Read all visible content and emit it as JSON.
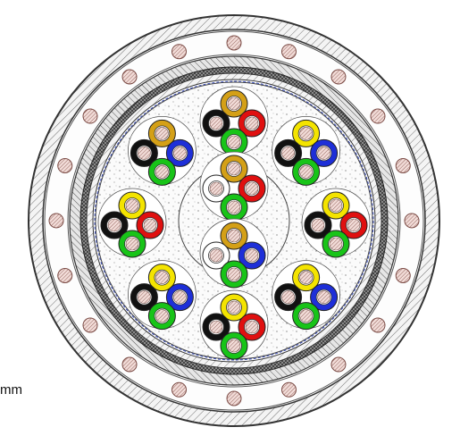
{
  "figure": {
    "unit_text": "mm",
    "colors": {
      "outline": "#333333",
      "jacket_fill": "#f4f4f4",
      "armor_fill": "#bdbdbd",
      "strength_member_fill": "#e8c8c4",
      "filler_fill": "#fafafa",
      "core_hatch": "#c9a39c",
      "binder_tape": "#3a4db5",
      "conductor_yellow": "#f4e400",
      "conductor_red": "#e01010",
      "conductor_blue": "#1e2fd8",
      "conductor_green": "#18c418",
      "conductor_black": "#111111",
      "conductor_gold": "#d4a017",
      "conductor_white": "#ffffff"
    },
    "outer_quads": [
      {
        "name": "top",
        "conductors": [
          "gold",
          "black",
          "red",
          "green"
        ]
      },
      {
        "name": "upper-right",
        "conductors": [
          "yellow",
          "black",
          "blue",
          "green"
        ]
      },
      {
        "name": "right",
        "conductors": [
          "yellow",
          "black",
          "red",
          "green"
        ]
      },
      {
        "name": "lower-right",
        "conductors": [
          "yellow",
          "black",
          "blue",
          "green"
        ]
      },
      {
        "name": "bottom",
        "conductors": [
          "yellow",
          "black",
          "red",
          "green"
        ]
      },
      {
        "name": "lower-left",
        "conductors": [
          "yellow",
          "black",
          "blue",
          "green"
        ]
      },
      {
        "name": "left",
        "conductors": [
          "yellow",
          "black",
          "red",
          "green"
        ]
      },
      {
        "name": "upper-left",
        "conductors": [
          "gold",
          "black",
          "blue",
          "green"
        ]
      }
    ],
    "central_quads": [
      {
        "name": "center-upper",
        "conductors": [
          "gold",
          "white",
          "red",
          "green"
        ]
      },
      {
        "name": "center-lower",
        "conductors": [
          "gold",
          "white",
          "blue",
          "green"
        ]
      }
    ]
  }
}
